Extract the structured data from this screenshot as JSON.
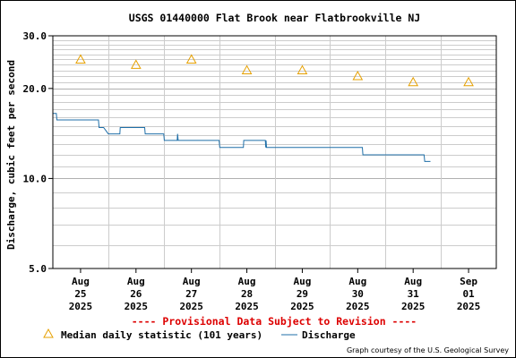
{
  "chart_data": {
    "type": "line",
    "title": "USGS 01440000 Flat Brook near Flatbrookville NJ",
    "ylabel": "Discharge, cubic feet per second",
    "xlabel": "",
    "yscale": "log",
    "ylim": [
      5,
      30
    ],
    "y_ticks": [
      {
        "value": 5,
        "label": "5.0"
      },
      {
        "value": 10,
        "label": "10.0"
      },
      {
        "value": 20,
        "label": "20.0"
      },
      {
        "value": 30,
        "label": "30.0"
      }
    ],
    "x_range": [
      "2025-08-25T00:00",
      "2025-09-02T00:00"
    ],
    "x_ticks": [
      {
        "date": "2025-08-25T12:00",
        "month": "Aug",
        "day": "25",
        "year": "2025"
      },
      {
        "date": "2025-08-26T12:00",
        "month": "Aug",
        "day": "26",
        "year": "2025"
      },
      {
        "date": "2025-08-27T12:00",
        "month": "Aug",
        "day": "27",
        "year": "2025"
      },
      {
        "date": "2025-08-28T12:00",
        "month": "Aug",
        "day": "28",
        "year": "2025"
      },
      {
        "date": "2025-08-29T12:00",
        "month": "Aug",
        "day": "29",
        "year": "2025"
      },
      {
        "date": "2025-08-30T12:00",
        "month": "Aug",
        "day": "30",
        "year": "2025"
      },
      {
        "date": "2025-08-31T12:00",
        "month": "Aug",
        "day": "31",
        "year": "2025"
      },
      {
        "date": "2025-09-01T12:00",
        "month": "Sep",
        "day": "01",
        "year": "2025"
      }
    ],
    "grid": true,
    "series": [
      {
        "name": "Median daily statistic (101 years)",
        "marker": "triangle",
        "color": "#e6a000",
        "points": [
          {
            "x": "2025-08-25T12:00",
            "y": 25
          },
          {
            "x": "2025-08-26T12:00",
            "y": 24
          },
          {
            "x": "2025-08-27T12:00",
            "y": 25
          },
          {
            "x": "2025-08-28T12:00",
            "y": 23
          },
          {
            "x": "2025-08-29T12:00",
            "y": 23
          },
          {
            "x": "2025-08-30T12:00",
            "y": 22
          },
          {
            "x": "2025-08-31T12:00",
            "y": 21
          },
          {
            "x": "2025-09-01T12:00",
            "y": 21
          }
        ]
      },
      {
        "name": "Discharge",
        "marker": "line",
        "color": "#1f6fa8",
        "points": [
          {
            "x": "2025-08-25T00:00",
            "y": 16.5
          },
          {
            "x": "2025-08-25T01:30",
            "y": 16.5
          },
          {
            "x": "2025-08-25T01:45",
            "y": 15.7
          },
          {
            "x": "2025-08-25T19:45",
            "y": 15.7
          },
          {
            "x": "2025-08-25T20:00",
            "y": 14.8
          },
          {
            "x": "2025-08-25T22:00",
            "y": 14.8
          },
          {
            "x": "2025-08-26T00:00",
            "y": 14.1
          },
          {
            "x": "2025-08-26T05:00",
            "y": 14.1
          },
          {
            "x": "2025-08-26T05:10",
            "y": 14.8
          },
          {
            "x": "2025-08-26T15:45",
            "y": 14.8
          },
          {
            "x": "2025-08-26T16:00",
            "y": 14.1
          },
          {
            "x": "2025-08-27T00:00",
            "y": 14.1
          },
          {
            "x": "2025-08-27T00:15",
            "y": 13.4
          },
          {
            "x": "2025-08-27T05:50",
            "y": 13.4
          },
          {
            "x": "2025-08-27T06:00",
            "y": 14.1
          },
          {
            "x": "2025-08-27T06:15",
            "y": 13.4
          },
          {
            "x": "2025-08-28T00:00",
            "y": 13.4
          },
          {
            "x": "2025-08-28T00:15",
            "y": 12.7
          },
          {
            "x": "2025-08-28T10:30",
            "y": 12.7
          },
          {
            "x": "2025-08-28T10:40",
            "y": 13.4
          },
          {
            "x": "2025-08-28T20:00",
            "y": 13.4
          },
          {
            "x": "2025-08-28T20:10",
            "y": 12.7
          },
          {
            "x": "2025-08-28T20:20",
            "y": 13.4
          },
          {
            "x": "2025-08-28T20:30",
            "y": 12.7
          },
          {
            "x": "2025-08-30T14:00",
            "y": 12.7
          },
          {
            "x": "2025-08-30T14:15",
            "y": 12.0
          },
          {
            "x": "2025-08-31T16:45",
            "y": 12.0
          },
          {
            "x": "2025-08-31T17:00",
            "y": 11.4
          },
          {
            "x": "2025-08-31T19:30",
            "y": 11.4
          }
        ]
      }
    ],
    "provisional_note": "---- Provisional Data Subject to Revision ----",
    "credit": "Graph courtesy of the U.S. Geological Survey",
    "legend_position": "bottom"
  }
}
